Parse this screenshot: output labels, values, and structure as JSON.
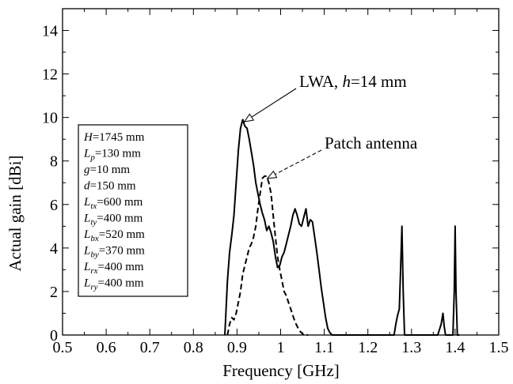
{
  "chart_data": {
    "type": "line",
    "xlabel": "Frequency [GHz]",
    "ylabel": "Actual gain [dBi]",
    "xlim": [
      0.5,
      1.5
    ],
    "ylim": [
      0,
      15
    ],
    "x_ticks": [
      "0.5",
      "0.6",
      "0.7",
      "0.8",
      "0.9",
      "1",
      "1.1",
      "1.2",
      "1.3",
      "1.4",
      "1.5"
    ],
    "y_ticks": [
      "0",
      "2",
      "4",
      "6",
      "8",
      "10",
      "12",
      "14"
    ],
    "grid": false,
    "series": [
      {
        "name": "LWA, h=14 mm",
        "style": "solid",
        "x": [
          0.872,
          0.878,
          0.883,
          0.888,
          0.893,
          0.898,
          0.903,
          0.908,
          0.913,
          0.918,
          0.923,
          0.928,
          0.933,
          0.938,
          0.943,
          0.948,
          0.953,
          0.958,
          0.963,
          0.968,
          0.973,
          0.978,
          0.983,
          0.988,
          0.993,
          0.998,
          1.003,
          1.008,
          1.013,
          1.018,
          1.023,
          1.028,
          1.033,
          1.038,
          1.043,
          1.048,
          1.053,
          1.058,
          1.063,
          1.068,
          1.073,
          1.078,
          1.083,
          1.088,
          1.093,
          1.098,
          1.103,
          1.108,
          1.113,
          1.118,
          1.123,
          1.26,
          1.264,
          1.268,
          1.272,
          1.275,
          1.278,
          1.281,
          1.284,
          1.29,
          1.36,
          1.368,
          1.372,
          1.375,
          1.378,
          1.382,
          1.39,
          1.395,
          1.398,
          1.4,
          1.402,
          1.405,
          1.41
        ],
        "y": [
          0,
          2.5,
          3.8,
          4.6,
          5.5,
          7.0,
          8.5,
          9.5,
          9.9,
          9.6,
          9.5,
          9.0,
          8.4,
          7.8,
          7.0,
          6.5,
          6.0,
          5.6,
          5.3,
          4.8,
          5.0,
          4.7,
          4.3,
          3.6,
          3.1,
          3.2,
          3.6,
          3.8,
          4.2,
          4.6,
          5.0,
          5.5,
          5.8,
          5.5,
          5.1,
          5.0,
          5.4,
          5.8,
          5.0,
          5.3,
          5.2,
          4.5,
          3.8,
          3.0,
          2.2,
          1.5,
          0.8,
          0.3,
          0.1,
          0,
          0,
          0,
          0.5,
          0.9,
          1.2,
          3.0,
          5.0,
          2.0,
          0,
          0,
          0,
          0.5,
          1.0,
          0.4,
          0,
          0,
          0,
          0,
          2.0,
          5.0,
          2.0,
          0,
          0
        ]
      },
      {
        "name": "Patch antenna",
        "style": "dashed",
        "x": [
          0.878,
          0.883,
          0.888,
          0.893,
          0.898,
          0.903,
          0.908,
          0.913,
          0.918,
          0.923,
          0.928,
          0.933,
          0.938,
          0.943,
          0.948,
          0.953,
          0.958,
          0.963,
          0.968,
          0.973,
          0.978,
          0.983,
          0.988,
          0.993,
          0.998,
          1.003,
          1.008,
          1.013,
          1.018,
          1.023,
          1.028,
          1.033,
          1.038,
          1.043,
          1.048,
          1.053,
          1.058,
          1.063
        ],
        "y": [
          0,
          0.5,
          0.8,
          0.7,
          1.0,
          1.5,
          2.0,
          2.8,
          3.2,
          3.6,
          4.0,
          4.2,
          4.5,
          5.0,
          5.8,
          6.5,
          7.2,
          7.3,
          7.3,
          7.0,
          6.5,
          5.5,
          4.5,
          3.6,
          3.0,
          2.5,
          2.0,
          1.8,
          1.5,
          1.2,
          0.9,
          0.6,
          0.4,
          0.2,
          0.1,
          0,
          0,
          0
        ]
      }
    ],
    "annotations": [
      {
        "prefix": "LWA,  ",
        "italic": "h",
        "suffix": "=14 mm",
        "target_x": 0.913,
        "target_y": 9.8
      },
      {
        "prefix": "Patch antenna",
        "italic": "",
        "suffix": "",
        "target_x": 0.966,
        "target_y": 7.2
      }
    ],
    "legend_lines": [
      {
        "sym": "H",
        "sub": "",
        "val": "=1745 mm"
      },
      {
        "sym": "L",
        "sub": "p",
        "val": "=130 mm"
      },
      {
        "sym": "g",
        "sub": "",
        "val": "=10 mm"
      },
      {
        "sym": "d",
        "sub": "",
        "val": "=150 mm"
      },
      {
        "sym": "L",
        "sub": "tx",
        "val": "=600 mm"
      },
      {
        "sym": "L",
        "sub": "ty",
        "val": "=400 mm"
      },
      {
        "sym": "L",
        "sub": "bx",
        "val": "=520 mm"
      },
      {
        "sym": "L",
        "sub": "by",
        "val": "=370 mm"
      },
      {
        "sym": "L",
        "sub": "rx",
        "val": "=400 mm"
      },
      {
        "sym": "L",
        "sub": "ry",
        "val": "=400 mm"
      }
    ]
  }
}
